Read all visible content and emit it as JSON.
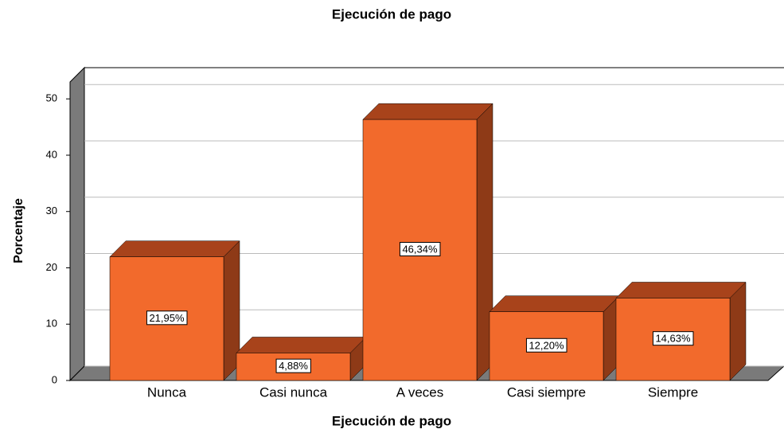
{
  "chart_data": {
    "type": "bar",
    "title": "Ejecución de pago",
    "x_label": "Ejecución de pago",
    "y_label": "Porcentaje",
    "categories": [
      "Nunca",
      "Casi nunca",
      "A veces",
      "Casi siempre",
      "Siempre"
    ],
    "values": [
      21.95,
      4.88,
      46.34,
      12.2,
      14.63
    ],
    "value_labels": [
      "21,95%",
      "4,88%",
      "46,34%",
      "12,20%",
      "14,63%"
    ],
    "color": "#f26a2c",
    "ylim": [
      0,
      53
    ],
    "yticks": [
      0,
      10,
      20,
      30,
      40,
      50
    ],
    "grid": true
  }
}
